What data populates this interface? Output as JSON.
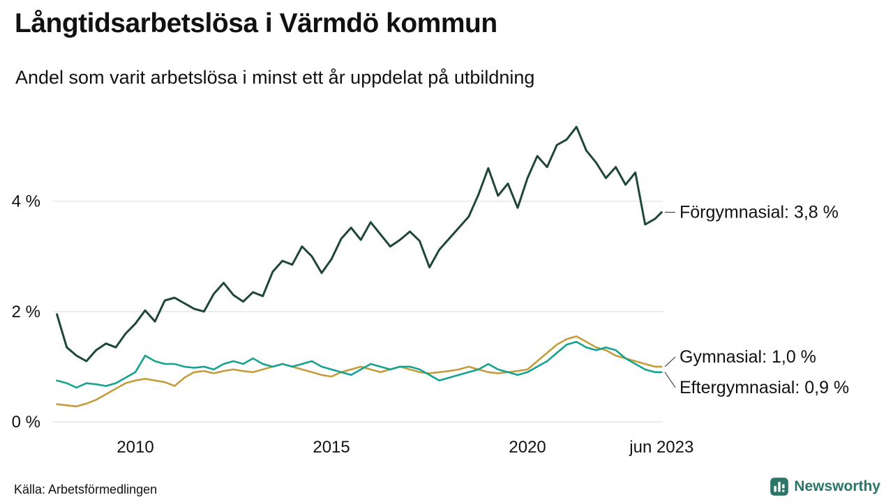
{
  "header": {
    "title": "Långtidsarbetslösa i Värmdö kommun",
    "subtitle": "Andel som varit arbetslösa i minst ett år uppdelat på utbildning"
  },
  "footer": {
    "source": "Källa: Arbetsförmedlingen",
    "brand": "Newsworthy"
  },
  "colors": {
    "forgymnasial": "#1e4639",
    "gymnasial": "#c49c3d",
    "eftergymnasial": "#14a38e",
    "grid": "#e6e6e6",
    "axis_text": "#111111",
    "label_text": "#111111",
    "connector": "#444444",
    "brand": "#2a7568"
  },
  "chart_data": {
    "type": "line",
    "title": "Långtidsarbetslösa i Värmdö kommun",
    "subtitle": "Andel som varit arbetslösa i minst ett år uppdelat på utbildning",
    "xlabel": "",
    "ylabel": "",
    "xlim": [
      2007.9,
      2023.45
    ],
    "ylim": [
      0,
      5.5
    ],
    "grid": "horizontal",
    "legend_position": "right-end-labels",
    "yticks": [
      {
        "value": 0,
        "label": "0 %"
      },
      {
        "value": 2,
        "label": "2 %"
      },
      {
        "value": 4,
        "label": "4 %"
      }
    ],
    "xticks": [
      {
        "value": 2010,
        "label": "2010"
      },
      {
        "value": 2015,
        "label": "2015"
      },
      {
        "value": 2020,
        "label": "2020"
      },
      {
        "value": 2023.42,
        "label": "jun 2023"
      }
    ],
    "x": [
      2008.0,
      2008.25,
      2008.5,
      2008.75,
      2009.0,
      2009.25,
      2009.5,
      2009.75,
      2010.0,
      2010.25,
      2010.5,
      2010.75,
      2011.0,
      2011.25,
      2011.5,
      2011.75,
      2012.0,
      2012.25,
      2012.5,
      2012.75,
      2013.0,
      2013.25,
      2013.5,
      2013.75,
      2014.0,
      2014.25,
      2014.5,
      2014.75,
      2015.0,
      2015.25,
      2015.5,
      2015.75,
      2016.0,
      2016.25,
      2016.5,
      2016.75,
      2017.0,
      2017.25,
      2017.5,
      2017.75,
      2018.0,
      2018.25,
      2018.5,
      2018.75,
      2019.0,
      2019.25,
      2019.5,
      2019.75,
      2020.0,
      2020.25,
      2020.5,
      2020.75,
      2021.0,
      2021.25,
      2021.5,
      2021.75,
      2022.0,
      2022.25,
      2022.5,
      2022.75,
      2023.0,
      2023.25,
      2023.42
    ],
    "series": [
      {
        "name": "Förgymnasial",
        "color_key": "forgymnasial",
        "end_value_label": "Förgymnasial: 3,8 %",
        "last_value": 3.8,
        "label_dy": 0,
        "stroke_width": 3,
        "values": [
          1.95,
          1.35,
          1.2,
          1.1,
          1.3,
          1.42,
          1.35,
          1.6,
          1.78,
          2.02,
          1.82,
          2.2,
          2.25,
          2.15,
          2.05,
          2.0,
          2.32,
          2.52,
          2.3,
          2.18,
          2.35,
          2.28,
          2.72,
          2.92,
          2.85,
          3.18,
          3.0,
          2.7,
          2.95,
          3.32,
          3.52,
          3.3,
          3.62,
          3.4,
          3.18,
          3.3,
          3.45,
          3.28,
          2.8,
          3.12,
          3.32,
          3.52,
          3.72,
          4.12,
          4.6,
          4.1,
          4.32,
          3.88,
          4.42,
          4.82,
          4.62,
          5.02,
          5.12,
          5.35,
          4.92,
          4.7,
          4.42,
          4.62,
          4.3,
          4.52,
          3.58,
          3.68,
          3.8
        ]
      },
      {
        "name": "Gymnasial",
        "color_key": "gymnasial",
        "end_value_label": "Gymnasial: 1,0 %",
        "last_value": 1.0,
        "label_dy": -14,
        "stroke_width": 2.6,
        "values": [
          0.32,
          0.3,
          0.28,
          0.33,
          0.4,
          0.5,
          0.6,
          0.7,
          0.75,
          0.78,
          0.75,
          0.72,
          0.65,
          0.8,
          0.9,
          0.92,
          0.88,
          0.92,
          0.95,
          0.92,
          0.9,
          0.95,
          1.0,
          1.05,
          1.0,
          0.95,
          0.9,
          0.85,
          0.82,
          0.9,
          0.95,
          1.0,
          0.95,
          0.9,
          0.95,
          1.0,
          0.95,
          0.9,
          0.88,
          0.9,
          0.92,
          0.95,
          1.0,
          0.95,
          0.9,
          0.88,
          0.9,
          0.92,
          0.95,
          1.1,
          1.25,
          1.4,
          1.5,
          1.55,
          1.45,
          1.35,
          1.3,
          1.2,
          1.15,
          1.1,
          1.05,
          1.0,
          1.0
        ]
      },
      {
        "name": "Eftergymnasial",
        "color_key": "eftergymnasial",
        "end_value_label": "Eftergymnasial: 0,9 %",
        "last_value": 0.9,
        "label_dy": 22,
        "stroke_width": 2.6,
        "values": [
          0.75,
          0.7,
          0.62,
          0.7,
          0.68,
          0.65,
          0.7,
          0.8,
          0.9,
          1.2,
          1.1,
          1.05,
          1.05,
          1.0,
          0.98,
          1.0,
          0.95,
          1.05,
          1.1,
          1.05,
          1.15,
          1.05,
          1.0,
          1.05,
          1.0,
          1.05,
          1.1,
          1.0,
          0.95,
          0.9,
          0.85,
          0.95,
          1.05,
          1.0,
          0.95,
          1.0,
          1.0,
          0.95,
          0.85,
          0.75,
          0.8,
          0.85,
          0.9,
          0.95,
          1.05,
          0.95,
          0.9,
          0.85,
          0.9,
          1.0,
          1.1,
          1.25,
          1.4,
          1.45,
          1.35,
          1.3,
          1.35,
          1.3,
          1.15,
          1.05,
          0.95,
          0.9,
          0.9
        ]
      }
    ]
  }
}
